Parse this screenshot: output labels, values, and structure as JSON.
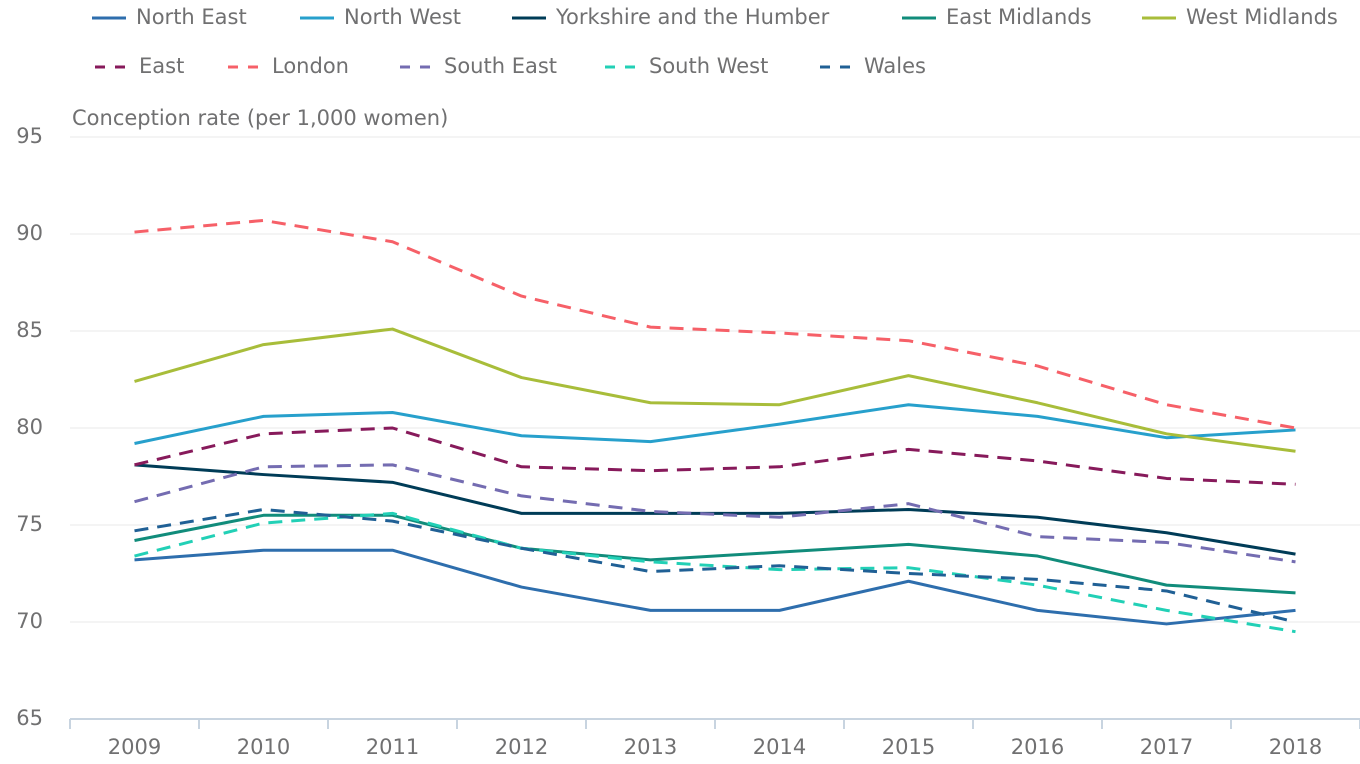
{
  "chart_data": {
    "type": "line",
    "y_axis_label": "Conception rate (per 1,000 women)",
    "categories": [
      "2009",
      "2010",
      "2011",
      "2012",
      "2013",
      "2014",
      "2015",
      "2016",
      "2017",
      "2018"
    ],
    "ylim": [
      65,
      95
    ],
    "yticks": [
      65,
      70,
      75,
      80,
      85,
      90,
      95
    ],
    "grid": true,
    "series": [
      {
        "name": "North East",
        "color": "#2e6ead",
        "style": "solid",
        "values": [
          73.2,
          73.7,
          73.7,
          71.8,
          70.6,
          70.6,
          72.1,
          70.6,
          69.9,
          70.6
        ]
      },
      {
        "name": "North West",
        "color": "#27a0cc",
        "style": "solid",
        "values": [
          79.2,
          80.6,
          80.8,
          79.6,
          79.3,
          80.2,
          81.2,
          80.6,
          79.5,
          79.9
        ]
      },
      {
        "name": "Yorkshire and the Humber",
        "color": "#003c57",
        "style": "solid",
        "values": [
          78.1,
          77.6,
          77.2,
          75.6,
          75.6,
          75.6,
          75.8,
          75.4,
          74.6,
          73.5
        ]
      },
      {
        "name": "East Midlands",
        "color": "#118c7b",
        "style": "solid",
        "values": [
          74.2,
          75.5,
          75.5,
          73.8,
          73.2,
          73.6,
          74.0,
          73.4,
          71.9,
          71.5
        ]
      },
      {
        "name": "West Midlands",
        "color": "#a8bd3a",
        "style": "solid",
        "values": [
          82.4,
          84.3,
          85.1,
          82.6,
          81.3,
          81.2,
          82.7,
          81.3,
          79.7,
          78.8
        ]
      },
      {
        "name": "East",
        "color": "#871a5b",
        "style": "dashed",
        "values": [
          78.1,
          79.7,
          80.0,
          78.0,
          77.8,
          78.0,
          78.9,
          78.3,
          77.4,
          77.1
        ]
      },
      {
        "name": "London",
        "color": "#f66068",
        "style": "dashed",
        "values": [
          90.1,
          90.7,
          89.6,
          86.8,
          85.2,
          84.9,
          84.5,
          83.2,
          81.2,
          80.0
        ]
      },
      {
        "name": "South East",
        "color": "#746cb1",
        "style": "dashed",
        "values": [
          76.2,
          78.0,
          78.1,
          76.5,
          75.7,
          75.4,
          76.1,
          74.4,
          74.1,
          73.1
        ]
      },
      {
        "name": "South West",
        "color": "#22d0b6",
        "style": "dashed",
        "values": [
          73.4,
          75.1,
          75.6,
          73.8,
          73.1,
          72.7,
          72.8,
          71.9,
          70.6,
          69.5
        ]
      },
      {
        "name": "Wales",
        "color": "#206095",
        "style": "dashed",
        "values": [
          74.7,
          75.8,
          75.2,
          73.8,
          72.6,
          72.9,
          72.5,
          72.2,
          71.6,
          70.0
        ]
      }
    ]
  }
}
